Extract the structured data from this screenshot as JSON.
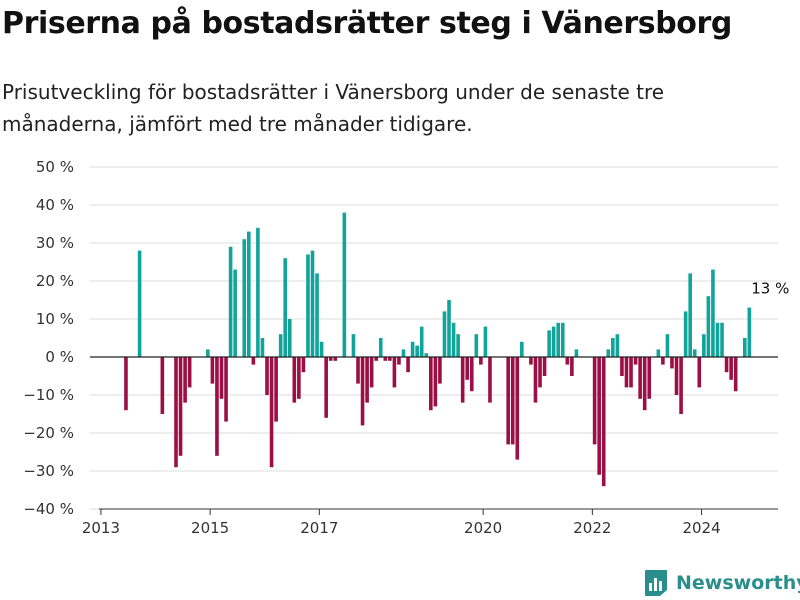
{
  "header": {
    "title": "Priserna på bostadsrätter steg i Vänersborg",
    "subtitle": "Prisutveckling för bostadsrätter i Vänersborg under de senaste tre månaderna, jämfört med tre månader tidigare."
  },
  "brand": {
    "name": "Newsworthy",
    "icon": "newsworthy-logo-icon"
  },
  "colors": {
    "positive": "#12a39a",
    "negative": "#9c0f45",
    "grid": "#dddddd",
    "zero_line": "#222222"
  },
  "chart_data": {
    "type": "bar",
    "title": "Priserna på bostadsrätter steg i Vänersborg",
    "subtitle": "Prisutveckling för bostadsrätter i Vänersborg under de senaste tre månaderna, jämfört med tre månader tidigare.",
    "xlabel": "",
    "ylabel": "",
    "ylim": [
      -40,
      50
    ],
    "y_ticks": [
      -40,
      -30,
      -20,
      -10,
      0,
      10,
      20,
      30,
      40,
      50
    ],
    "y_tick_labels": [
      "−40 %",
      "−30 %",
      "−20 %",
      "−10 %",
      "0 %",
      "10 %",
      "20 %",
      "30 %",
      "40 %",
      "50 %"
    ],
    "x_ticks": [
      2013,
      2015,
      2017,
      2020,
      2022,
      2024
    ],
    "x_tick_labels": [
      "2013",
      "2015",
      "2017",
      "2020",
      "2022",
      "2024"
    ],
    "grid": true,
    "annotation": "13 %",
    "series": [
      {
        "values": [
          {
            "date": "2013-06",
            "value": -14
          },
          {
            "date": "2013-09",
            "value": 28
          },
          {
            "date": "2014-02",
            "value": -15
          },
          {
            "date": "2014-05",
            "value": -29
          },
          {
            "date": "2014-06",
            "value": -26
          },
          {
            "date": "2014-07",
            "value": -12
          },
          {
            "date": "2014-08",
            "value": -8
          },
          {
            "date": "2014-12",
            "value": 2
          },
          {
            "date": "2015-01",
            "value": -7
          },
          {
            "date": "2015-02",
            "value": -26
          },
          {
            "date": "2015-03",
            "value": -11
          },
          {
            "date": "2015-04",
            "value": -17
          },
          {
            "date": "2015-05",
            "value": 29
          },
          {
            "date": "2015-06",
            "value": 23
          },
          {
            "date": "2015-08",
            "value": 31
          },
          {
            "date": "2015-09",
            "value": 33
          },
          {
            "date": "2015-10",
            "value": -2
          },
          {
            "date": "2015-11",
            "value": 34
          },
          {
            "date": "2015-12",
            "value": 5
          },
          {
            "date": "2016-01",
            "value": -10
          },
          {
            "date": "2016-02",
            "value": -29
          },
          {
            "date": "2016-03",
            "value": -17
          },
          {
            "date": "2016-04",
            "value": 6
          },
          {
            "date": "2016-05",
            "value": 26
          },
          {
            "date": "2016-06",
            "value": 10
          },
          {
            "date": "2016-07",
            "value": -12
          },
          {
            "date": "2016-08",
            "value": -11
          },
          {
            "date": "2016-09",
            "value": -4
          },
          {
            "date": "2016-10",
            "value": 27
          },
          {
            "date": "2016-11",
            "value": 28
          },
          {
            "date": "2016-12",
            "value": 22
          },
          {
            "date": "2017-01",
            "value": 4
          },
          {
            "date": "2017-02",
            "value": -16
          },
          {
            "date": "2017-03",
            "value": -1
          },
          {
            "date": "2017-04",
            "value": -1
          },
          {
            "date": "2017-06",
            "value": 38
          },
          {
            "date": "2017-08",
            "value": 6
          },
          {
            "date": "2017-09",
            "value": -7
          },
          {
            "date": "2017-10",
            "value": -18
          },
          {
            "date": "2017-11",
            "value": -12
          },
          {
            "date": "2017-12",
            "value": -8
          },
          {
            "date": "2018-01",
            "value": -1
          },
          {
            "date": "2018-02",
            "value": 5
          },
          {
            "date": "2018-03",
            "value": -1
          },
          {
            "date": "2018-04",
            "value": -1
          },
          {
            "date": "2018-05",
            "value": -8
          },
          {
            "date": "2018-06",
            "value": -2
          },
          {
            "date": "2018-07",
            "value": 2
          },
          {
            "date": "2018-08",
            "value": -4
          },
          {
            "date": "2018-09",
            "value": 4
          },
          {
            "date": "2018-10",
            "value": 3
          },
          {
            "date": "2018-11",
            "value": 8
          },
          {
            "date": "2018-12",
            "value": 1
          },
          {
            "date": "2019-01",
            "value": -14
          },
          {
            "date": "2019-02",
            "value": -13
          },
          {
            "date": "2019-03",
            "value": -7
          },
          {
            "date": "2019-04",
            "value": 12
          },
          {
            "date": "2019-05",
            "value": 15
          },
          {
            "date": "2019-06",
            "value": 9
          },
          {
            "date": "2019-07",
            "value": 6
          },
          {
            "date": "2019-08",
            "value": -12
          },
          {
            "date": "2019-09",
            "value": -6
          },
          {
            "date": "2019-10",
            "value": -9
          },
          {
            "date": "2019-11",
            "value": 6
          },
          {
            "date": "2019-12",
            "value": -2
          },
          {
            "date": "2020-01",
            "value": 8
          },
          {
            "date": "2020-02",
            "value": -12
          },
          {
            "date": "2020-06",
            "value": -23
          },
          {
            "date": "2020-07",
            "value": -23
          },
          {
            "date": "2020-08",
            "value": -27
          },
          {
            "date": "2020-09",
            "value": 4
          },
          {
            "date": "2020-11",
            "value": -2
          },
          {
            "date": "2020-12",
            "value": -12
          },
          {
            "date": "2021-01",
            "value": -8
          },
          {
            "date": "2021-02",
            "value": -5
          },
          {
            "date": "2021-03",
            "value": 7
          },
          {
            "date": "2021-04",
            "value": 8
          },
          {
            "date": "2021-05",
            "value": 9
          },
          {
            "date": "2021-06",
            "value": 9
          },
          {
            "date": "2021-07",
            "value": -2
          },
          {
            "date": "2021-08",
            "value": -5
          },
          {
            "date": "2021-09",
            "value": 2
          },
          {
            "date": "2022-01",
            "value": -23
          },
          {
            "date": "2022-02",
            "value": -31
          },
          {
            "date": "2022-03",
            "value": -34
          },
          {
            "date": "2022-04",
            "value": 2
          },
          {
            "date": "2022-05",
            "value": 5
          },
          {
            "date": "2022-06",
            "value": 6
          },
          {
            "date": "2022-07",
            "value": -5
          },
          {
            "date": "2022-08",
            "value": -8
          },
          {
            "date": "2022-09",
            "value": -8
          },
          {
            "date": "2022-10",
            "value": -2
          },
          {
            "date": "2022-11",
            "value": -11
          },
          {
            "date": "2022-12",
            "value": -14
          },
          {
            "date": "2023-01",
            "value": -11
          },
          {
            "date": "2023-03",
            "value": 2
          },
          {
            "date": "2023-04",
            "value": -2
          },
          {
            "date": "2023-05",
            "value": 6
          },
          {
            "date": "2023-06",
            "value": -3
          },
          {
            "date": "2023-07",
            "value": -10
          },
          {
            "date": "2023-08",
            "value": -15
          },
          {
            "date": "2023-09",
            "value": 12
          },
          {
            "date": "2023-10",
            "value": 22
          },
          {
            "date": "2023-11",
            "value": 2
          },
          {
            "date": "2023-12",
            "value": -8
          },
          {
            "date": "2024-01",
            "value": 6
          },
          {
            "date": "2024-02",
            "value": 16
          },
          {
            "date": "2024-03",
            "value": 23
          },
          {
            "date": "2024-04",
            "value": 9
          },
          {
            "date": "2024-05",
            "value": 9
          },
          {
            "date": "2024-06",
            "value": -4
          },
          {
            "date": "2024-07",
            "value": -6
          },
          {
            "date": "2024-08",
            "value": -9
          },
          {
            "date": "2024-10",
            "value": 5
          },
          {
            "date": "2024-11",
            "value": 13
          }
        ]
      }
    ]
  }
}
